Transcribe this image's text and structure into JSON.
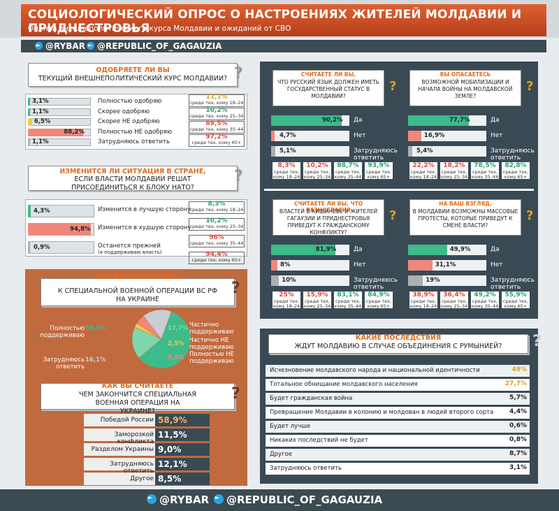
{
  "header": {
    "title": "СОЦИОЛОГИЧЕСКИЙ ОПРОС О НАСТРОЕНИЯХ ЖИТЕЛЕЙ МОЛДАВИИ И ПРИДНЕСТРОВЬЯ",
    "subtitle": "Оценка внешнеполитического курса Молдавии и ожиданий от СВО",
    "handle1": "@RYBAR",
    "handle2": "@REPUBLIC_OF_GAGAUZIA"
  },
  "colors": {
    "green": "#3dbb8a",
    "salmon": "#f0877a",
    "yellow": "#f2c94c",
    "gray": "#a9b0b4",
    "dark": "#3a4a55",
    "orange": "#e36b1c"
  },
  "age_labels": [
    "среди тех, кому 18–24",
    "среди тех, кому 25–34",
    "среди тех, кому 35–44",
    "среди тех, кому 65+"
  ],
  "chart_data": [
    {
      "type": "bar",
      "id": "q1",
      "title_a": "ОДОБРЯЕТЕ ЛИ ВЫ",
      "title_b": "ТЕКУЩИЙ ВНЕШНЕПОЛИТИЧЕСКИЙ КУРС МОЛДАВИИ?",
      "categories": [
        "Полностью одобряю",
        "Скорее одобряю",
        "Скорее НЕ одобряю",
        "Полностью НЕ одобряю",
        "Затрудняюсь ответить"
      ],
      "values": [
        3.1,
        1.1,
        6.5,
        88.2,
        1.1
      ],
      "labels": [
        "3,1%",
        "1,1%",
        "6,5%",
        "88,2%",
        "1,1%"
      ],
      "bar_colors": [
        "#3dbb8a",
        "#3dbb8a",
        "#f2c94c",
        "#f0877a",
        "#a9b0b4"
      ],
      "side_stats": [
        "11,1%",
        "10,2%",
        "89,5%",
        "97,2%"
      ],
      "side_colors": [
        "#e0a020",
        "#2aa070",
        "#d94a3a",
        "#d94a3a"
      ]
    },
    {
      "type": "bar",
      "id": "q2",
      "title_a": "ИЗМЕНИТСЯ ЛИ СИТУАЦИЯ В СТРАНЕ,",
      "title_b": "ЕСЛИ ВЛАСТИ МОЛДАВИИ РЕШАТ ПРИСОЕДИНИТЬСЯ К БЛОКУ НАТО?",
      "categories": [
        "Изменится в лучшую сторону",
        "Изменится в худшую сторону",
        "Останется прежней"
      ],
      "note": "(я поддерживаю власть)",
      "values": [
        4.3,
        94.8,
        0.9
      ],
      "labels": [
        "4,3%",
        "94,8%",
        "0,9%"
      ],
      "bar_colors": [
        "#3dbb8a",
        "#f0877a",
        "#a9b0b4"
      ],
      "side_stats": [
        "8,3%",
        "10,2%",
        "96%",
        "94,4%"
      ],
      "side_colors": [
        "#2aa070",
        "#2aa070",
        "#d94a3a",
        "#d94a3a"
      ]
    },
    {
      "type": "pie",
      "id": "q3",
      "title_a": "КАК ВЫ ОТНОСИТЕСЬ",
      "title_b": "К СПЕЦИАЛЬНОЙ ВОЕННОЙ ОПЕРАЦИИ ВС РФ НА УКРАИНЕ",
      "categories": [
        "Полностью поддерживаю",
        "Частично поддерживаю",
        "Частично НЕ поддерживаю",
        "Полностью НЕ поддерживаю",
        "Затрудняюсь ответить"
      ],
      "values": [
        58.3,
        17.7,
        2.5,
        5.4,
        16.1
      ],
      "labels": [
        "58,3%",
        "17,7%",
        "2,5%",
        "5,4%",
        "16,1%"
      ],
      "slice_colors": [
        "#3dbb8a",
        "#7fd6ad",
        "#f2c94c",
        "#f0877a",
        "#c9ced1"
      ]
    },
    {
      "type": "bar",
      "id": "q4",
      "title_a": "КАК ВЫ СЧИТАЕТЕ",
      "title_b": "ЧЕМ ЗАКОНЧИТСЯ СПЕЦИАЛЬНАЯ ВОЕННАЯ ОПЕРАЦИЯ НА УКРАИНЕ?",
      "categories": [
        "Победой России",
        "Заморозкой конфликта",
        "Разделом Украины",
        "Затрудняюсь ответить",
        "Другое"
      ],
      "values": [
        58.9,
        11.5,
        9.0,
        12.1,
        8.5
      ],
      "labels": [
        "58,9%",
        "11,5%",
        "9,0%",
        "12,1%",
        "8,5%"
      ]
    },
    {
      "type": "bar",
      "id": "q5",
      "title_a": "СЧИТАЕТЕ ЛИ ВЫ,",
      "title_b": "ЧТО РУССКИЙ ЯЗЫК ДОЛЖЕН ИМЕТЬ ГОСУДАРСТВЕННЫЙ СТАТУС В МОЛДАВИИ?",
      "categories": [
        "Да",
        "Нет",
        "Затрудняюсь ответить"
      ],
      "values": [
        90.2,
        4.7,
        5.1
      ],
      "labels": [
        "90,2%",
        "4,7%",
        "5,1%"
      ],
      "side_stats": [
        "8,3%",
        "10,2%",
        "88,7%",
        "93,9%"
      ],
      "side_colors": [
        "#d94a3a",
        "#d94a3a",
        "#2aa070",
        "#2aa070"
      ]
    },
    {
      "type": "bar",
      "id": "q6",
      "title_a": "ВЫ ОПАСАЕТЕСЬ",
      "title_b": "ВОЗМОЖНОЙ МОБИЛИЗАЦИИ И НАЧАЛА ВОЙНЫ НА МОЛДАВСКОЙ ЗЕМЛЕ?",
      "categories": [
        "Да",
        "Нет",
        "Затрудняюсь ответить"
      ],
      "values": [
        77.7,
        16.9,
        5.4
      ],
      "labels": [
        "77,7%",
        "16,9%",
        "5,4%"
      ],
      "side_stats": [
        "22,2%",
        "18,2%",
        "78,5%",
        "82,8%"
      ],
      "side_colors": [
        "#d94a3a",
        "#d94a3a",
        "#2aa070",
        "#2aa070"
      ]
    },
    {
      "type": "bar",
      "id": "q7",
      "title_a": "СЧИТАЕТЕ ЛИ ВЫ,",
      "title_a2": " ЧТО РАЗНОГЛАСИЯ",
      "title_b": "ВЛАСТЕЙ В КИШИНЕВЕ И ЖИТЕЛЕЙ ГАГАУЗИИ И ПРИДНЕСТРОВЬЯ ПРИВЕДУТ К ГРАЖДАНСКОМУ КОНФЛИКТУ?",
      "categories": [
        "Да",
        "Нет",
        "Затрудняюсь ответить"
      ],
      "values": [
        81.9,
        8,
        10
      ],
      "labels": [
        "81,9%",
        "8%",
        "10%"
      ],
      "side_stats": [
        "25%",
        "15,9%",
        "83,1%",
        "84,9%"
      ],
      "side_colors": [
        "#d94a3a",
        "#d94a3a",
        "#2aa070",
        "#2aa070"
      ]
    },
    {
      "type": "bar",
      "id": "q8",
      "title_a": "НА ВАШ ВЗГЛЯД,",
      "title_b": "В МОЛДАВИИ ВОЗМОЖНЫ МАССОВЫЕ ПРОТЕСТЫ, КОТОРЫЕ ПРИВЕДУТ К СМЕНЕ ВЛАСТИ?",
      "categories": [
        "Да",
        "Нет",
        "Затрудняюсь ответить"
      ],
      "values": [
        49.9,
        31.1,
        19
      ],
      "labels": [
        "49,9%",
        "31,1%",
        "19%"
      ],
      "side_stats": [
        "38,9%",
        "36,4%",
        "49,2%",
        "55,9%"
      ],
      "side_colors": [
        "#d94a3a",
        "#d94a3a",
        "#2aa070",
        "#2aa070"
      ]
    },
    {
      "type": "bar",
      "id": "q9",
      "title_a": "КАКИЕ ПОСЛЕДСТВИЯ",
      "title_b": "ЖДУТ МОЛДАВИЮ В СЛУЧАЕ ОБЪЕДИНЕНИЯ С РУМЫНИЕЙ?",
      "categories": [
        "Исчезновение молдавского народа и национальной идентичности",
        "Тотальное обнищание молдавского населения",
        "Будет гражданская война",
        "Превращение Молдавии в колонию и молдован в людей второго сорта",
        "Будет лучше",
        "Никаких последствий не будет",
        "Другое",
        "Затрудняюсь ответить"
      ],
      "values": [
        49,
        27.7,
        5.7,
        4.4,
        0.6,
        0.8,
        8.7,
        3.1
      ],
      "labels": [
        "49%",
        "27,7%",
        "5,7%",
        "4,4%",
        "0,6%",
        "0,8%",
        "8,7%",
        "3,1%"
      ]
    }
  ]
}
